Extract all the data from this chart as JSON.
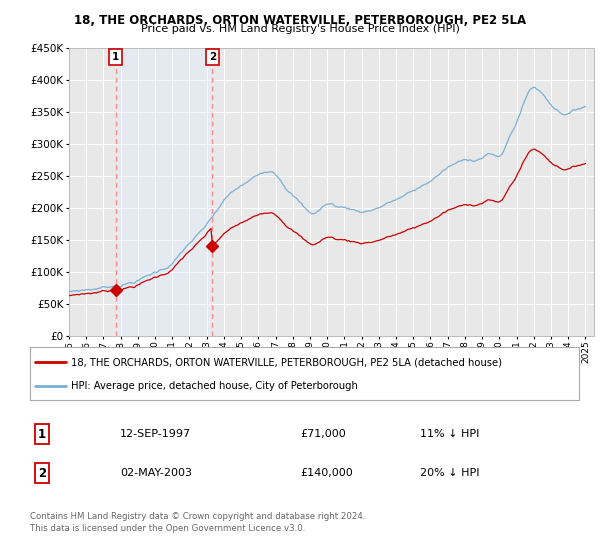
{
  "title_line1": "18, THE ORCHARDS, ORTON WATERVILLE, PETERBOROUGH, PE2 5LA",
  "title_line2": "Price paid vs. HM Land Registry's House Price Index (HPI)",
  "bg_color": "#ffffff",
  "plot_bg_color": "#e8e8e8",
  "grid_color": "#ffffff",
  "hpi_color": "#7ab0d4",
  "sale_color": "#cc0000",
  "vline_color": "#ff8888",
  "shade_color": "#ddeeff",
  "marker_color": "#cc0000",
  "sale1_year": 1997.71,
  "sale1_price": 71000,
  "sale1_label": "1",
  "sale1_date": "12-SEP-1997",
  "sale1_pct": "11% ↓ HPI",
  "sale2_year": 2003.33,
  "sale2_price": 140000,
  "sale2_label": "2",
  "sale2_date": "02-MAY-2003",
  "sale2_pct": "20% ↓ HPI",
  "legend_line1": "18, THE ORCHARDS, ORTON WATERVILLE, PETERBOROUGH, PE2 5LA (detached house)",
  "legend_line2": "HPI: Average price, detached house, City of Peterborough",
  "footnote": "Contains HM Land Registry data © Crown copyright and database right 2024.\nThis data is licensed under the Open Government Licence v3.0.",
  "ylim_min": 0,
  "ylim_max": 450000,
  "xlim_min": 1995,
  "xlim_max": 2025.5
}
